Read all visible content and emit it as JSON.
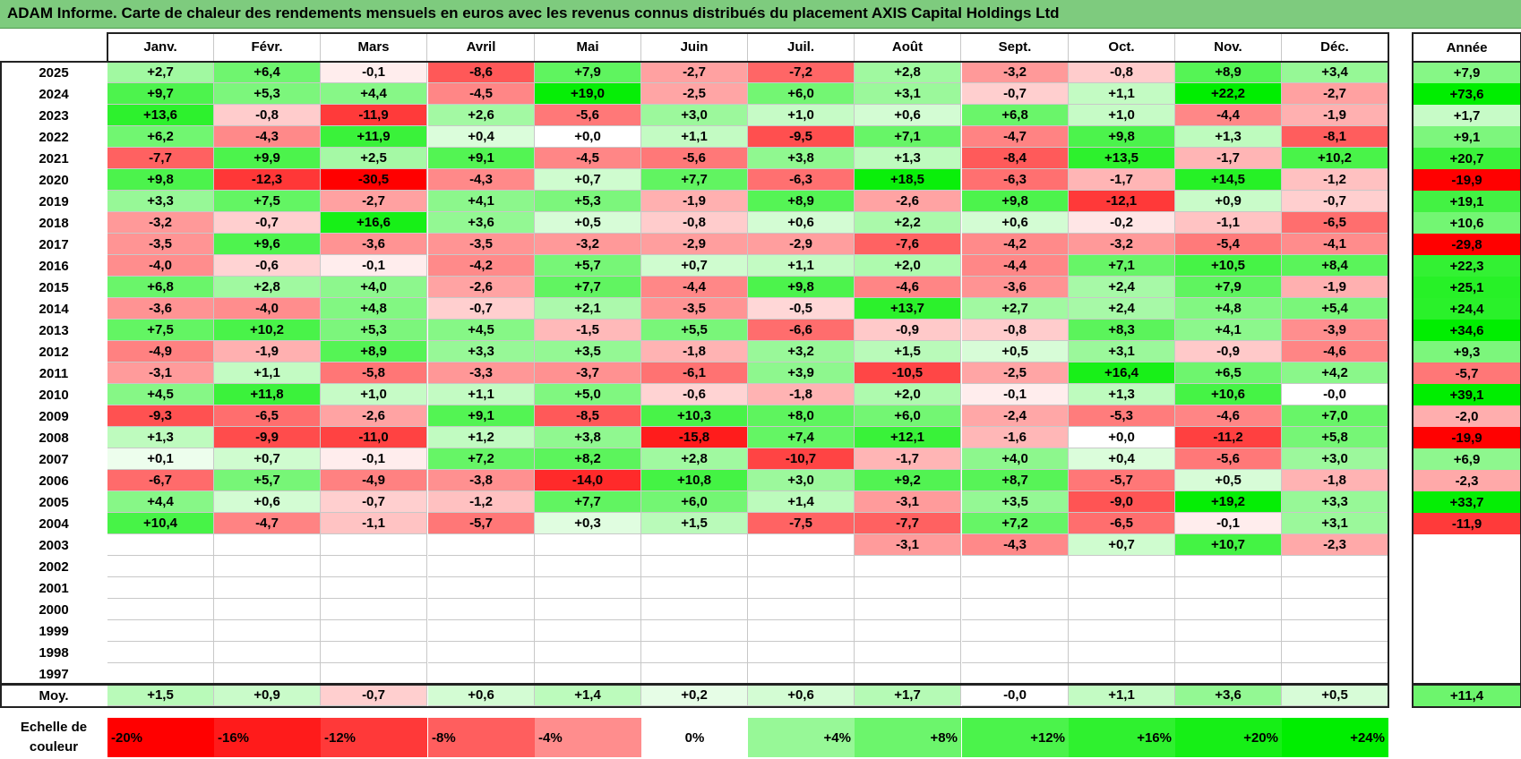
{
  "title": "ADAM Informe. Carte de chaleur des rendements mensuels en euros avec les revenus connus distribués du placement AXIS Capital Holdings Ltd",
  "chart_data": {
    "type": "heatmap",
    "title": "ADAM Informe. Carte de chaleur des rendements mensuels en euros avec les revenus connus distribués du placement AXIS Capital Holdings Ltd",
    "columns": [
      "Janv.",
      "Févr.",
      "Mars",
      "Avril",
      "Mai",
      "Juin",
      "Juil.",
      "Août",
      "Sept.",
      "Oct.",
      "Nov.",
      "Déc."
    ],
    "year_column_label": "Année",
    "average_row_label": "Moy.",
    "rows": [
      {
        "year": "2025",
        "values": [
          "+2,7",
          "+6,4",
          "-0,1",
          "-8,6",
          "+7,9",
          "-2,7",
          "-7,2",
          "+2,8",
          "-3,2",
          "-0,8",
          "+8,9",
          "+3,4"
        ],
        "annual": "+7,9"
      },
      {
        "year": "2024",
        "values": [
          "+9,7",
          "+5,3",
          "+4,4",
          "-4,5",
          "+19,0",
          "-2,5",
          "+6,0",
          "+3,1",
          "-0,7",
          "+1,1",
          "+22,2",
          "-2,7"
        ],
        "annual": "+73,6"
      },
      {
        "year": "2023",
        "values": [
          "+13,6",
          "-0,8",
          "-11,9",
          "+2,6",
          "-5,6",
          "+3,0",
          "+1,0",
          "+0,6",
          "+6,8",
          "+1,0",
          "-4,4",
          "-1,9"
        ],
        "annual": "+1,7"
      },
      {
        "year": "2022",
        "values": [
          "+6,2",
          "-4,3",
          "+11,9",
          "+0,4",
          "+0,0",
          "+1,1",
          "-9,5",
          "+7,1",
          "-4,7",
          "+9,8",
          "+1,3",
          "-8,1"
        ],
        "annual": "+9,1"
      },
      {
        "year": "2021",
        "values": [
          "-7,7",
          "+9,9",
          "+2,5",
          "+9,1",
          "-4,5",
          "-5,6",
          "+3,8",
          "+1,3",
          "-8,4",
          "+13,5",
          "-1,7",
          "+10,2"
        ],
        "annual": "+20,7"
      },
      {
        "year": "2020",
        "values": [
          "+9,8",
          "-12,3",
          "-30,5",
          "-4,3",
          "+0,7",
          "+7,7",
          "-6,3",
          "+18,5",
          "-6,3",
          "-1,7",
          "+14,5",
          "-1,2"
        ],
        "annual": "-19,9"
      },
      {
        "year": "2019",
        "values": [
          "+3,3",
          "+7,5",
          "-2,7",
          "+4,1",
          "+5,3",
          "-1,9",
          "+8,9",
          "-2,6",
          "+9,8",
          "-12,1",
          "+0,9",
          "-0,7"
        ],
        "annual": "+19,1"
      },
      {
        "year": "2018",
        "values": [
          "-3,2",
          "-0,7",
          "+16,6",
          "+3,6",
          "+0,5",
          "-0,8",
          "+0,6",
          "+2,2",
          "+0,6",
          "-0,2",
          "-1,1",
          "-6,5"
        ],
        "annual": "+10,6"
      },
      {
        "year": "2017",
        "values": [
          "-3,5",
          "+9,6",
          "-3,6",
          "-3,5",
          "-3,2",
          "-2,9",
          "-2,9",
          "-7,6",
          "-4,2",
          "-3,2",
          "-5,4",
          "-4,1"
        ],
        "annual": "-29,8"
      },
      {
        "year": "2016",
        "values": [
          "-4,0",
          "-0,6",
          "-0,1",
          "-4,2",
          "+5,7",
          "+0,7",
          "+1,1",
          "+2,0",
          "-4,4",
          "+7,1",
          "+10,5",
          "+8,4"
        ],
        "annual": "+22,3"
      },
      {
        "year": "2015",
        "values": [
          "+6,8",
          "+2,8",
          "+4,0",
          "-2,6",
          "+7,7",
          "-4,4",
          "+9,8",
          "-4,6",
          "-3,6",
          "+2,4",
          "+7,9",
          "-1,9"
        ],
        "annual": "+25,1"
      },
      {
        "year": "2014",
        "values": [
          "-3,6",
          "-4,0",
          "+4,8",
          "-0,7",
          "+2,1",
          "-3,5",
          "-0,5",
          "+13,7",
          "+2,7",
          "+2,4",
          "+4,8",
          "+5,4"
        ],
        "annual": "+24,4"
      },
      {
        "year": "2013",
        "values": [
          "+7,5",
          "+10,2",
          "+5,3",
          "+4,5",
          "-1,5",
          "+5,5",
          "-6,6",
          "-0,9",
          "-0,8",
          "+8,3",
          "+4,1",
          "-3,9"
        ],
        "annual": "+34,6"
      },
      {
        "year": "2012",
        "values": [
          "-4,9",
          "-1,9",
          "+8,9",
          "+3,3",
          "+3,5",
          "-1,8",
          "+3,2",
          "+1,5",
          "+0,5",
          "+3,1",
          "-0,9",
          "-4,6"
        ],
        "annual": "+9,3"
      },
      {
        "year": "2011",
        "values": [
          "-3,1",
          "+1,1",
          "-5,8",
          "-3,3",
          "-3,7",
          "-6,1",
          "+3,9",
          "-10,5",
          "-2,5",
          "+16,4",
          "+6,5",
          "+4,2"
        ],
        "annual": "-5,7"
      },
      {
        "year": "2010",
        "values": [
          "+4,5",
          "+11,8",
          "+1,0",
          "+1,1",
          "+5,0",
          "-0,6",
          "-1,8",
          "+2,0",
          "-0,1",
          "+1,3",
          "+10,6",
          "-0,0"
        ],
        "annual": "+39,1"
      },
      {
        "year": "2009",
        "values": [
          "-9,3",
          "-6,5",
          "-2,6",
          "+9,1",
          "-8,5",
          "+10,3",
          "+8,0",
          "+6,0",
          "-2,4",
          "-5,3",
          "-4,6",
          "+7,0"
        ],
        "annual": "-2,0"
      },
      {
        "year": "2008",
        "values": [
          "+1,3",
          "-9,9",
          "-11,0",
          "+1,2",
          "+3,8",
          "-15,8",
          "+7,4",
          "+12,1",
          "-1,6",
          "+0,0",
          "-11,2",
          "+5,8"
        ],
        "annual": "-19,9"
      },
      {
        "year": "2007",
        "values": [
          "+0,1",
          "+0,7",
          "-0,1",
          "+7,2",
          "+8,2",
          "+2,8",
          "-10,7",
          "-1,7",
          "+4,0",
          "+0,4",
          "-5,6",
          "+3,0"
        ],
        "annual": "+6,9"
      },
      {
        "year": "2006",
        "values": [
          "-6,7",
          "+5,7",
          "-4,9",
          "-3,8",
          "-14,0",
          "+10,8",
          "+3,0",
          "+9,2",
          "+8,7",
          "-5,7",
          "+0,5",
          "-1,8"
        ],
        "annual": "-2,3"
      },
      {
        "year": "2005",
        "values": [
          "+4,4",
          "+0,6",
          "-0,7",
          "-1,2",
          "+7,7",
          "+6,0",
          "+1,4",
          "-3,1",
          "+3,5",
          "-9,0",
          "+19,2",
          "+3,3"
        ],
        "annual": "+33,7"
      },
      {
        "year": "2004",
        "values": [
          "+10,4",
          "-4,7",
          "-1,1",
          "-5,7",
          "+0,3",
          "+1,5",
          "-7,5",
          "-7,7",
          "+7,2",
          "-6,5",
          "-0,1",
          "+3,1"
        ],
        "annual": "-11,9"
      },
      {
        "year": "2003",
        "values": [
          "",
          "",
          "",
          "",
          "",
          "",
          "",
          "-3,1",
          "-4,3",
          "+0,7",
          "+10,7",
          "-2,3"
        ],
        "annual": ""
      },
      {
        "year": "2002",
        "values": [
          "",
          "",
          "",
          "",
          "",
          "",
          "",
          "",
          "",
          "",
          "",
          ""
        ],
        "annual": ""
      },
      {
        "year": "2001",
        "values": [
          "",
          "",
          "",
          "",
          "",
          "",
          "",
          "",
          "",
          "",
          "",
          ""
        ],
        "annual": ""
      },
      {
        "year": "2000",
        "values": [
          "",
          "",
          "",
          "",
          "",
          "",
          "",
          "",
          "",
          "",
          "",
          ""
        ],
        "annual": ""
      },
      {
        "year": "1999",
        "values": [
          "",
          "",
          "",
          "",
          "",
          "",
          "",
          "",
          "",
          "",
          "",
          ""
        ],
        "annual": ""
      },
      {
        "year": "1998",
        "values": [
          "",
          "",
          "",
          "",
          "",
          "",
          "",
          "",
          "",
          "",
          "",
          ""
        ],
        "annual": ""
      },
      {
        "year": "1997",
        "values": [
          "",
          "",
          "",
          "",
          "",
          "",
          "",
          "",
          "",
          "",
          "",
          ""
        ],
        "annual": ""
      }
    ],
    "averages": [
      "+1,5",
      "+0,9",
      "-0,7",
      "+0,6",
      "+1,4",
      "+0,2",
      "+0,6",
      "+1,7",
      "-0,0",
      "+1,1",
      "+3,6",
      "+0,5"
    ],
    "average_annual": "+11,4",
    "color_scale": {
      "label": "Echelle de\ncouleur",
      "stops": [
        "-20%",
        "-16%",
        "-12%",
        "-8%",
        "-4%",
        "0%",
        "+4%",
        "+8%",
        "+12%",
        "+16%",
        "+20%",
        "+24%"
      ],
      "values": [
        -20,
        -16,
        -12,
        -8,
        -4,
        0,
        4,
        8,
        12,
        16,
        20,
        24
      ],
      "negative_color": "#ff0000",
      "positive_color": "#00ee00",
      "neutral_color": "#ffffff"
    }
  }
}
